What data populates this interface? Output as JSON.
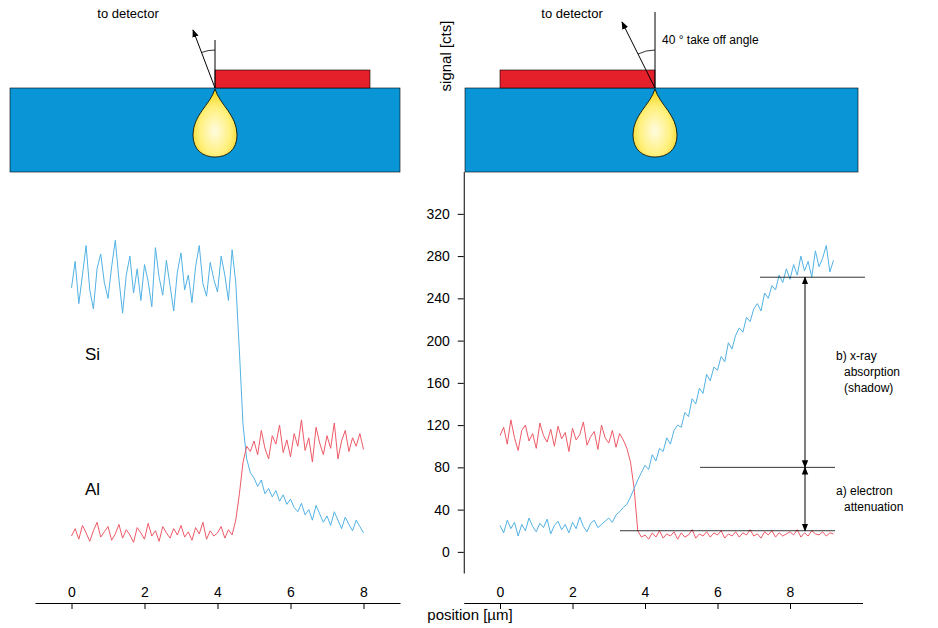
{
  "chart_data": [
    {
      "type": "line",
      "xlim": [
        -1,
        9
      ],
      "xticks": [
        0,
        2,
        4,
        6,
        8
      ],
      "tick_labels": "x",
      "annotations": [
        {
          "text": "to detector"
        }
      ],
      "x": [
        0,
        0.1,
        0.2,
        0.3,
        0.4,
        0.5,
        0.6,
        0.7,
        0.8,
        0.9,
        1,
        1.1,
        1.2,
        1.3,
        1.4,
        1.5,
        1.6,
        1.7,
        1.8,
        1.9,
        2,
        2.1,
        2.2,
        2.3,
        2.4,
        2.5,
        2.6,
        2.7,
        2.8,
        2.9,
        3,
        3.1,
        3.2,
        3.3,
        3.4,
        3.5,
        3.6,
        3.7,
        3.8,
        3.9,
        4,
        4.1,
        4.2,
        4.3,
        4.4,
        4.5,
        4.6,
        4.7,
        4.8,
        4.9,
        5,
        5.1,
        5.2,
        5.3,
        5.4,
        5.5,
        5.6,
        5.7,
        5.8,
        5.9,
        6,
        6.1,
        6.2,
        6.3,
        6.4,
        6.5,
        6.6,
        6.7,
        6.8,
        6.9,
        7,
        7.1,
        7.2,
        7.3,
        7.4,
        7.5,
        7.6,
        7.7,
        7.8,
        7.9,
        8
      ],
      "series": [
        {
          "name": "Si",
          "color": "#52b2e4",
          "values": [
            250,
            275,
            235,
            262,
            290,
            248,
            230,
            268,
            282,
            255,
            240,
            270,
            295,
            258,
            226,
            262,
            280,
            245,
            268,
            238,
            272,
            256,
            232,
            288,
            260,
            243,
            276,
            252,
            228,
            265,
            283,
            248,
            262,
            236,
            270,
            290,
            254,
            242,
            274,
            258,
            246,
            280,
            262,
            238,
            286,
            255,
            190,
            120,
            88,
            75,
            70,
            62,
            68,
            55,
            60,
            52,
            58,
            48,
            54,
            45,
            50,
            42,
            38,
            46,
            35,
            40,
            30,
            44,
            36,
            28,
            34,
            25,
            38,
            30,
            22,
            33,
            26,
            20,
            30,
            24,
            18
          ]
        },
        {
          "name": "Al",
          "color": "#ee5a68",
          "values": [
            15,
            22,
            12,
            25,
            18,
            10,
            20,
            28,
            14,
            19,
            24,
            11,
            17,
            26,
            13,
            21,
            16,
            9,
            23,
            18,
            12,
            27,
            15,
            20,
            10,
            24,
            18,
            13,
            22,
            16,
            25,
            14,
            19,
            11,
            23,
            17,
            28,
            12,
            20,
            15,
            18,
            24,
            13,
            21,
            16,
            30,
            55,
            85,
            100,
            95,
            105,
            92,
            115,
            98,
            88,
            110,
            102,
            120,
            94,
            106,
            90,
            112,
            100,
            125,
            96,
            108,
            85,
            118,
            103,
            92,
            110,
            98,
            122,
            88,
            105,
            115,
            95,
            108,
            100,
            112,
            97
          ]
        }
      ]
    },
    {
      "type": "line",
      "xlim": [
        -1,
        10
      ],
      "xticks": [
        0,
        2,
        4,
        6,
        8
      ],
      "ylim": [
        -20,
        360
      ],
      "yticks": [
        0,
        40,
        80,
        120,
        160,
        200,
        240,
        280,
        320
      ],
      "x_label": "position [µm]",
      "y_label": "signal [cts]",
      "annotations": [
        {
          "text": "to detector"
        },
        {
          "text": "40 ° take off angle"
        },
        {
          "lines": [
            "b) x-ray",
            "absorption",
            "(shadow)"
          ],
          "from": 80,
          "to": 260
        },
        {
          "lines": [
            "a) electron",
            "attenuation"
          ],
          "from": 20,
          "to": 80
        }
      ],
      "x": [
        0,
        0.1,
        0.2,
        0.3,
        0.4,
        0.5,
        0.6,
        0.7,
        0.8,
        0.9,
        1,
        1.1,
        1.2,
        1.3,
        1.4,
        1.5,
        1.6,
        1.7,
        1.8,
        1.9,
        2,
        2.1,
        2.2,
        2.3,
        2.4,
        2.5,
        2.6,
        2.7,
        2.8,
        2.9,
        3,
        3.1,
        3.2,
        3.3,
        3.4,
        3.5,
        3.6,
        3.7,
        3.8,
        3.9,
        4,
        4.1,
        4.2,
        4.3,
        4.4,
        4.5,
        4.6,
        4.7,
        4.8,
        4.9,
        5,
        5.1,
        5.2,
        5.3,
        5.4,
        5.5,
        5.6,
        5.7,
        5.8,
        5.9,
        6,
        6.1,
        6.2,
        6.3,
        6.4,
        6.5,
        6.6,
        6.7,
        6.8,
        6.9,
        7,
        7.1,
        7.2,
        7.3,
        7.4,
        7.5,
        7.6,
        7.7,
        7.8,
        7.9,
        8,
        8.1,
        8.2,
        8.3,
        8.4,
        8.5,
        8.6,
        8.7,
        8.8,
        8.9,
        9,
        9.1,
        9.2
      ],
      "series": [
        {
          "color": "#ee5a68",
          "values": [
            110,
            118,
            102,
            125,
            108,
            96,
            115,
            120,
            105,
            112,
            98,
            122,
            110,
            104,
            116,
            100,
            119,
            107,
            113,
            95,
            117,
            106,
            111,
            123,
            101,
            109,
            114,
            97,
            120,
            108,
            103,
            115,
            99,
            112,
            106,
            98,
            85,
            60,
            20,
            14,
            16,
            12,
            18,
            14,
            20,
            13,
            17,
            15,
            19,
            12,
            18,
            14,
            16,
            21,
            13,
            17,
            15,
            19,
            14,
            18,
            16,
            20,
            13,
            17,
            15,
            19,
            14,
            18,
            16,
            21,
            15,
            17,
            13,
            19,
            16,
            20,
            14,
            18,
            15,
            17,
            19,
            16,
            21,
            14,
            18,
            15,
            20,
            17,
            16,
            19,
            15,
            18,
            17
          ]
        },
        {
          "color": "#52b2e4",
          "values": [
            25,
            18,
            30,
            22,
            28,
            15,
            26,
            20,
            32,
            24,
            19,
            27,
            23,
            31,
            17,
            25,
            29,
            21,
            26,
            18,
            28,
            22,
            33,
            24,
            19,
            27,
            30,
            23,
            26,
            29,
            32,
            28,
            35,
            38,
            42,
            45,
            52,
            60,
            68,
            75,
            82,
            78,
            92,
            86,
            98,
            95,
            108,
            102,
            115,
            120,
            118,
            132,
            128,
            145,
            140,
            155,
            150,
            168,
            162,
            175,
            172,
            185,
            180,
            198,
            192,
            205,
            212,
            208,
            222,
            218,
            230,
            235,
            228,
            245,
            240,
            252,
            248,
            262,
            255,
            268,
            258,
            272,
            262,
            280,
            266,
            275,
            260,
            285,
            270,
            278,
            290,
            265,
            276
          ]
        }
      ]
    }
  ]
}
